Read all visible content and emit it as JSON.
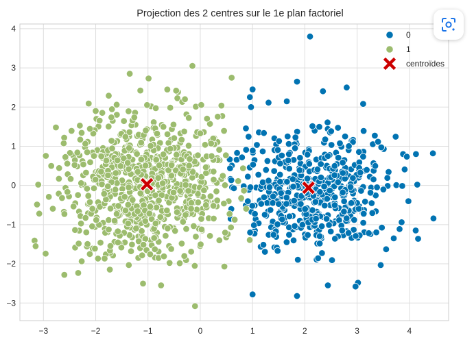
{
  "chart_data": {
    "type": "scatter",
    "title": "Projection des 2 centres sur le 1e plan factoriel",
    "xlabel": "",
    "ylabel": "",
    "xlim": [
      -3.45,
      4.75
    ],
    "ylim": [
      -3.45,
      4.12
    ],
    "xticks": [
      -3,
      -2,
      -1,
      0,
      1,
      2,
      3,
      4
    ],
    "yticks": [
      -3,
      -2,
      -1,
      0,
      1,
      2,
      3,
      4
    ],
    "xtick_labels": [
      "−3",
      "−2",
      "−1",
      "0",
      "1",
      "2",
      "3",
      "4"
    ],
    "ytick_labels": [
      "−3",
      "−2",
      "−1",
      "0",
      "1",
      "2",
      "3",
      "4"
    ],
    "grid": true,
    "legend_position": "top-right",
    "series": [
      {
        "name": "0",
        "color": "#0173b2",
        "center": [
          2.05,
          -0.08
        ],
        "spread": [
          0.82,
          0.85
        ],
        "count": 520,
        "x_range": [
          0.55,
          4.5
        ],
        "points": [
          [
            2.1,
            3.8
          ],
          [
            4.45,
            0.82
          ],
          [
            1.0,
            -2.78
          ],
          [
            2.97,
            -2.58
          ],
          [
            1.0,
            2.45
          ],
          [
            1.85,
            2.65
          ],
          [
            2.8,
            2.5
          ],
          [
            4.12,
            -1.15
          ],
          [
            4.15,
            0.02
          ],
          [
            3.7,
            -1.35
          ],
          [
            0.58,
            -0.85
          ]
        ]
      },
      {
        "name": "1",
        "color": "#9cbc6e",
        "center": [
          -1.02,
          0.05
        ],
        "spread": [
          0.85,
          0.92
        ],
        "count": 780,
        "x_range": [
          -3.2,
          0.95
        ],
        "points": [
          [
            -3.15,
            -1.55
          ],
          [
            -3.1,
            0.02
          ],
          [
            -2.6,
            -2.28
          ],
          [
            -1.35,
            2.85
          ],
          [
            -0.15,
            3.05
          ],
          [
            -0.1,
            -3.08
          ],
          [
            0.6,
            2.75
          ],
          [
            -0.75,
            -2.55
          ],
          [
            -2.0,
            1.9
          ],
          [
            -3.08,
            -0.72
          ],
          [
            -2.85,
            0.5
          ]
        ]
      }
    ],
    "centroids": {
      "name": "centroïdes",
      "color": "#cc0000",
      "points": [
        [
          -1.02,
          0.03
        ],
        [
          2.07,
          -0.06
        ]
      ]
    }
  },
  "toolbar": {
    "lens_icon": "google-lens-icon"
  }
}
